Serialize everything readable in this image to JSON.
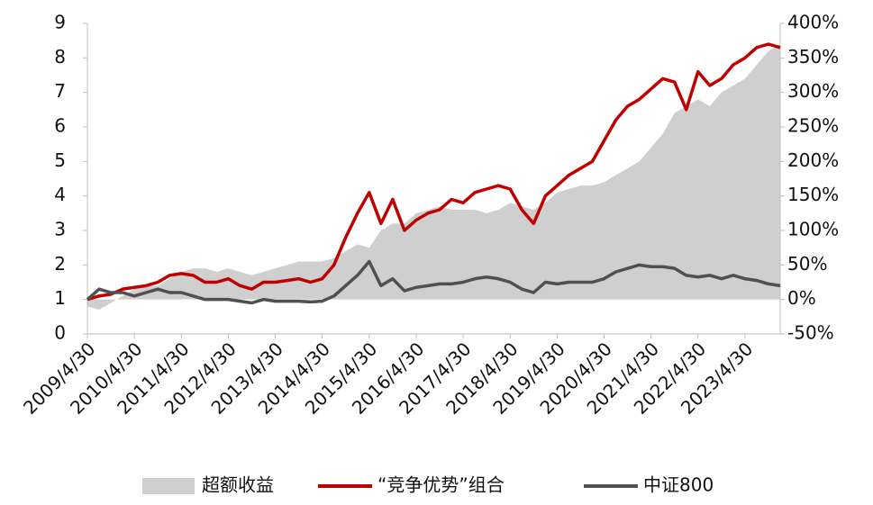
{
  "chart_data": {
    "type": "line",
    "categories": [
      "2009/4/30",
      null,
      null,
      null,
      "2010/4/30",
      null,
      null,
      null,
      "2011/4/30",
      null,
      null,
      null,
      "2012/4/30",
      null,
      null,
      null,
      "2013/4/30",
      null,
      null,
      null,
      "2014/4/30",
      null,
      null,
      null,
      "2015/4/30",
      null,
      null,
      null,
      "2016/4/30",
      null,
      null,
      null,
      "2017/4/30",
      null,
      null,
      null,
      "2018/4/30",
      null,
      null,
      null,
      "2019/4/30",
      null,
      null,
      null,
      "2020/4/30",
      null,
      null,
      null,
      "2021/4/30",
      null,
      null,
      null,
      "2022/4/30",
      null,
      null,
      null,
      "2023/4/30",
      null,
      null,
      null
    ],
    "series": [
      {
        "name": "超额收益",
        "color": "#d0cfcf",
        "axis": "y2",
        "kind": "area",
        "values": [
          -10,
          -15,
          -5,
          5,
          15,
          20,
          20,
          30,
          40,
          45,
          45,
          40,
          45,
          40,
          35,
          40,
          45,
          50,
          55,
          55,
          55,
          60,
          70,
          80,
          75,
          100,
          110,
          110,
          125,
          130,
          135,
          130,
          130,
          130,
          125,
          130,
          140,
          135,
          130,
          140,
          155,
          160,
          165,
          165,
          170,
          180,
          190,
          200,
          220,
          240,
          270,
          280,
          290,
          280,
          300,
          310,
          320,
          340,
          360,
          370
        ]
      },
      {
        "name": "“竞争优势”组合",
        "color": "#c00000",
        "kind": "line",
        "values": [
          1.0,
          1.1,
          1.15,
          1.3,
          1.35,
          1.4,
          1.5,
          1.7,
          1.75,
          1.7,
          1.5,
          1.5,
          1.6,
          1.4,
          1.3,
          1.5,
          1.5,
          1.55,
          1.6,
          1.5,
          1.6,
          2.0,
          2.8,
          3.5,
          4.1,
          3.2,
          3.9,
          3.0,
          3.3,
          3.5,
          3.6,
          3.9,
          3.8,
          4.1,
          4.2,
          4.3,
          4.2,
          3.6,
          3.2,
          4.0,
          4.3,
          4.6,
          4.8,
          5.0,
          5.6,
          6.2,
          6.6,
          6.8,
          7.1,
          7.4,
          7.3,
          6.5,
          7.6,
          7.2,
          7.4,
          7.8,
          8.0,
          8.3,
          8.4,
          8.3
        ]
      },
      {
        "name": "中证800",
        "color": "#505050",
        "kind": "line",
        "values": [
          1.0,
          1.3,
          1.2,
          1.2,
          1.1,
          1.2,
          1.3,
          1.2,
          1.2,
          1.1,
          1.0,
          1.0,
          1.0,
          0.95,
          0.9,
          1.0,
          0.95,
          0.95,
          0.95,
          0.93,
          0.95,
          1.1,
          1.4,
          1.7,
          2.1,
          1.4,
          1.6,
          1.25,
          1.35,
          1.4,
          1.45,
          1.45,
          1.5,
          1.6,
          1.65,
          1.6,
          1.5,
          1.3,
          1.2,
          1.5,
          1.45,
          1.5,
          1.5,
          1.5,
          1.6,
          1.8,
          1.9,
          2.0,
          1.95,
          1.95,
          1.9,
          1.7,
          1.65,
          1.7,
          1.6,
          1.7,
          1.6,
          1.55,
          1.45,
          1.4
        ]
      }
    ],
    "ylim": [
      0,
      9
    ],
    "yticks": [
      0,
      1,
      2,
      3,
      4,
      5,
      6,
      7,
      8,
      9
    ],
    "y2lim": [
      -50,
      400
    ],
    "y2ticks": [
      {
        "value": -50,
        "label": "-50%"
      },
      {
        "value": 0,
        "label": "0%"
      },
      {
        "value": 50,
        "label": "50%"
      },
      {
        "value": 100,
        "label": "100%"
      },
      {
        "value": 150,
        "label": "150%"
      },
      {
        "value": 200,
        "label": "200%"
      },
      {
        "value": 250,
        "label": "250%"
      },
      {
        "value": 300,
        "label": "300%"
      },
      {
        "value": 350,
        "label": "350%"
      },
      {
        "value": 400,
        "label": "400%"
      }
    ],
    "legend": "bottom"
  }
}
